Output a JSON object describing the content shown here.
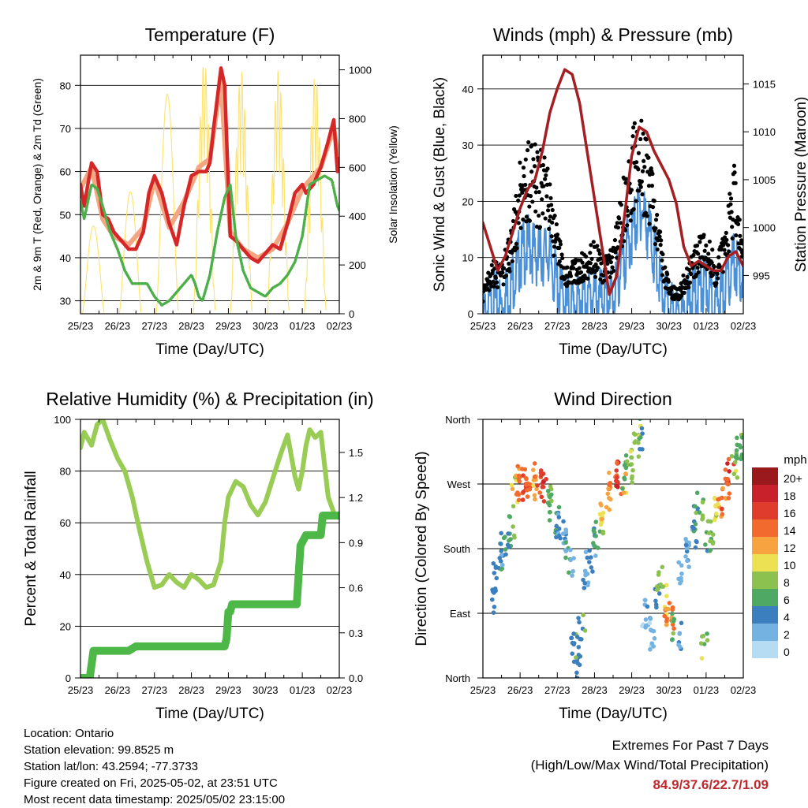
{
  "x_tick_labels": [
    "25/23",
    "26/23",
    "27/23",
    "28/23",
    "29/23",
    "30/23",
    "01/23",
    "02/23"
  ],
  "chart_data": [
    {
      "type": "line",
      "title": "Temperature (F)",
      "xlabel": "Time (Day/UTC)",
      "ylabel": "2m & 9m T (Red, Orange) & 2m Td (Green)",
      "ylabel_right": "Solar Insolation (Yellow)",
      "ylim": [
        27,
        87
      ],
      "ylim_right": [
        0,
        1060
      ],
      "xlim": [
        0,
        7
      ],
      "yticks": [
        30,
        40,
        50,
        60,
        70,
        80
      ],
      "yticks_right": [
        0,
        200,
        400,
        600,
        800,
        1000
      ],
      "series": [
        {
          "role": "2m T",
          "color": "#d62728",
          "x": [
            0,
            0.1,
            0.3,
            0.45,
            0.6,
            0.75,
            0.9,
            1.1,
            1.3,
            1.5,
            1.7,
            1.85,
            2.0,
            2.2,
            2.4,
            2.6,
            2.8,
            3.0,
            3.2,
            3.4,
            3.5,
            3.6,
            3.7,
            3.8,
            3.9,
            4.05,
            4.2,
            4.4,
            4.6,
            4.8,
            5.0,
            5.2,
            5.4,
            5.6,
            5.8,
            6.0,
            6.1,
            6.3,
            6.5,
            6.7,
            6.85,
            6.95,
            7.0
          ],
          "y": [
            57,
            52,
            62,
            60,
            50,
            49,
            46,
            44,
            42,
            42,
            46,
            55,
            59,
            55,
            48,
            43,
            52,
            59,
            60,
            60,
            62,
            70,
            77,
            84,
            80,
            45,
            44,
            42,
            40,
            39,
            41,
            43,
            42,
            48,
            55,
            57,
            55,
            57,
            61,
            67,
            72,
            60,
            63
          ]
        },
        {
          "role": "9m T",
          "color": "#f4a582",
          "x": [
            0,
            0.3,
            0.6,
            0.9,
            1.3,
            1.7,
            2.0,
            2.4,
            2.8,
            3.2,
            3.5,
            3.8,
            4.05,
            4.4,
            4.8,
            5.2,
            5.6,
            6.0,
            6.5,
            6.85,
            7.0
          ],
          "y": [
            56,
            61,
            49,
            45,
            43,
            47,
            58,
            47,
            53,
            61,
            63,
            81,
            46,
            42,
            40,
            42,
            48,
            56,
            61,
            70,
            62
          ]
        },
        {
          "role": "2m Td",
          "color": "#4daf4a",
          "x": [
            0,
            0.1,
            0.3,
            0.45,
            0.6,
            0.8,
            1.0,
            1.2,
            1.4,
            1.6,
            1.8,
            2.0,
            2.2,
            2.4,
            2.6,
            2.8,
            3.0,
            3.1,
            3.2,
            3.3,
            3.5,
            3.7,
            3.9,
            4.05,
            4.2,
            4.4,
            4.6,
            4.8,
            5.0,
            5.2,
            5.4,
            5.6,
            5.8,
            6.0,
            6.2,
            6.4,
            6.6,
            6.8,
            6.95,
            7.0
          ],
          "y": [
            53,
            49,
            57,
            56,
            52,
            46,
            42,
            37,
            34,
            34,
            34,
            31,
            29,
            30,
            32,
            34,
            36,
            34,
            31,
            30,
            36,
            46,
            54,
            57,
            45,
            37,
            33,
            32,
            31,
            33,
            34,
            36,
            39,
            45,
            57,
            58,
            59,
            58,
            52,
            51
          ]
        },
        {
          "role": "Solar Insolation",
          "color": "#fde36c",
          "axis": "right",
          "peaks_x": [
            0.35,
            1.35,
            2.35,
            3.35,
            4.35,
            5.35,
            6.35
          ],
          "peaks_y": [
            360,
            500,
            900,
            1040,
            1000,
            1000,
            980
          ]
        }
      ]
    },
    {
      "type": "line",
      "title": "Winds (mph) & Pressure (mb)",
      "xlabel": "Time (Day/UTC)",
      "ylabel": "Sonic Wind & Gust (Blue, Black)",
      "ylabel_right": "Station Pressure (Maroon)",
      "ylim": [
        0,
        46
      ],
      "ylim_right": [
        991.0,
        1018.0
      ],
      "xlim": [
        0,
        7
      ],
      "yticks": [
        0,
        10,
        20,
        30,
        40
      ],
      "yticks_right": [
        995,
        1000,
        1005,
        1010,
        1015
      ],
      "series": [
        {
          "role": "Sonic Wind",
          "color": "#4a90d9",
          "x": [
            0,
            0.25,
            0.5,
            0.75,
            1.0,
            1.25,
            1.5,
            1.75,
            2.0,
            2.25,
            2.5,
            2.75,
            3.0,
            3.25,
            3.5,
            3.75,
            4.0,
            4.25,
            4.5,
            4.75,
            5.0,
            5.25,
            5.5,
            5.75,
            6.0,
            6.25,
            6.5,
            6.75,
            7.0
          ],
          "y": [
            2,
            5,
            4,
            8,
            13,
            15,
            13,
            14,
            8,
            4,
            5,
            6,
            6,
            5,
            6,
            12,
            17,
            22,
            17,
            8,
            3,
            2,
            4,
            7,
            8,
            5,
            7,
            12,
            8
          ]
        },
        {
          "role": "Gust",
          "color": "#000000",
          "x": [
            0,
            0.25,
            0.5,
            0.75,
            1.0,
            1.25,
            1.5,
            1.75,
            2.0,
            2.25,
            2.5,
            2.75,
            3.0,
            3.25,
            3.5,
            3.75,
            4.0,
            4.25,
            4.5,
            4.75,
            5.0,
            5.25,
            5.5,
            5.75,
            6.0,
            6.25,
            6.5,
            6.75,
            7.0
          ],
          "y": [
            4,
            9,
            8,
            14,
            25,
            30,
            27,
            25,
            14,
            8,
            9,
            11,
            12,
            9,
            11,
            22,
            30,
            34,
            26,
            14,
            5,
            4,
            8,
            12,
            14,
            9,
            13,
            26,
            12
          ]
        },
        {
          "role": "Station Pressure",
          "color": "#a41e22",
          "axis": "right",
          "x": [
            0,
            0.2,
            0.4,
            0.6,
            0.8,
            1.0,
            1.2,
            1.4,
            1.6,
            1.8,
            2.0,
            2.2,
            2.4,
            2.6,
            2.8,
            3.0,
            3.2,
            3.4,
            3.6,
            3.8,
            4.0,
            4.2,
            4.4,
            4.6,
            4.8,
            5.0,
            5.2,
            5.4,
            5.6,
            5.8,
            6.0,
            6.2,
            6.4,
            6.6,
            6.8,
            7.0
          ],
          "y": [
            1000.5,
            998,
            995.5,
            997,
            999.5,
            1002,
            1004,
            1005,
            1008,
            1012,
            1014.5,
            1016.5,
            1016,
            1013,
            1008,
            1003,
            998,
            993,
            995,
            1001,
            1007.5,
            1010.5,
            1010,
            1008,
            1006.5,
            1005,
            1002.5,
            998,
            996,
            996.5,
            996,
            995.5,
            995.5,
            997,
            997.5,
            996
          ]
        }
      ]
    },
    {
      "type": "line",
      "title": "Relative Humidity (%) & Precipitation (in)",
      "xlabel": "Time (Day/UTC)",
      "ylabel": "Percent & Total Rainfall",
      "ylim": [
        0,
        100
      ],
      "ylim_right": [
        0,
        1.72
      ],
      "xlim": [
        0,
        7
      ],
      "yticks": [
        0,
        20,
        40,
        60,
        80,
        100
      ],
      "yticks_right": [
        "0.0",
        "0.3",
        "0.6",
        "0.9",
        "1.2",
        "1.5"
      ],
      "series": [
        {
          "role": "Relative Humidity",
          "color": "#99cc55",
          "x": [
            0,
            0.1,
            0.3,
            0.45,
            0.6,
            0.8,
            1.0,
            1.2,
            1.4,
            1.6,
            1.8,
            2.0,
            2.2,
            2.4,
            2.6,
            2.8,
            3.0,
            3.2,
            3.4,
            3.6,
            3.8,
            3.9,
            4.0,
            4.2,
            4.4,
            4.6,
            4.8,
            5.0,
            5.2,
            5.4,
            5.6,
            5.8,
            5.9,
            6.0,
            6.1,
            6.2,
            6.35,
            6.5,
            6.7,
            6.85,
            7.0
          ],
          "y": [
            89,
            95,
            90,
            98,
            100,
            92,
            85,
            80,
            70,
            57,
            45,
            35,
            36,
            40,
            37,
            35,
            40,
            38,
            35,
            36,
            45,
            60,
            70,
            76,
            74,
            67,
            63,
            68,
            77,
            86,
            94,
            78,
            73,
            80,
            90,
            96,
            93,
            95,
            70,
            64,
            62
          ]
        },
        {
          "role": "Total Precipitation",
          "color": "#4db848",
          "axis": "right",
          "x": [
            0,
            0.25,
            0.35,
            1.3,
            1.5,
            3.9,
            3.95,
            4.0,
            4.05,
            4.1,
            4.2,
            5.85,
            5.95,
            6.1,
            6.5,
            6.55,
            7.0
          ],
          "y": [
            0,
            0,
            0.18,
            0.18,
            0.21,
            0.21,
            0.26,
            0.44,
            0.44,
            0.49,
            0.49,
            0.49,
            0.88,
            0.95,
            0.95,
            1.08,
            1.08
          ]
        }
      ]
    },
    {
      "type": "scatter",
      "title": "Wind Direction",
      "xlabel": "Time (Day/UTC)",
      "ylabel": "Direction (Colored By Speed)",
      "ylim": [
        0,
        360
      ],
      "xlim": [
        0,
        7
      ],
      "ytick_labels": [
        "North",
        "East",
        "South",
        "West",
        "North"
      ],
      "colorbar_title": "mph",
      "colorbar_labels": [
        "20+",
        "18",
        "16",
        "14",
        "12",
        "10",
        "8",
        "6",
        "4",
        "2",
        "0"
      ],
      "colorbar_colors": [
        "#99191c",
        "#c9212b",
        "#e03c2d",
        "#f26a2d",
        "#f7a340",
        "#ece053",
        "#8cc150",
        "#4fa964",
        "#3b7fbf",
        "#74b2e2",
        "#b6dcf3"
      ],
      "points": {
        "x": [
          0.3,
          0.4,
          0.5,
          0.6,
          0.7,
          0.8,
          0.9,
          1.0,
          1.1,
          1.2,
          1.3,
          1.4,
          1.5,
          1.6,
          1.7,
          1.8,
          1.9,
          2.0,
          2.1,
          2.2,
          2.3,
          2.4,
          2.5,
          2.55,
          2.6,
          2.7,
          2.8,
          2.9,
          3.0,
          3.1,
          3.2,
          3.3,
          3.4,
          3.5,
          3.6,
          3.7,
          3.8,
          3.9,
          4.0,
          4.1,
          4.2,
          4.3,
          4.4,
          4.5,
          4.6,
          4.7,
          4.8,
          4.9,
          5.0,
          5.1,
          5.2,
          5.3,
          5.4,
          5.5,
          5.6,
          5.7,
          5.8,
          5.9,
          6.0,
          6.1,
          6.2,
          6.3,
          6.4,
          6.5,
          6.6,
          6.7,
          6.8,
          6.9,
          6.95
        ],
        "y": [
          120,
          150,
          175,
          195,
          210,
          220,
          270,
          285,
          280,
          275,
          285,
          290,
          280,
          285,
          275,
          260,
          250,
          230,
          220,
          210,
          200,
          170,
          60,
          40,
          20,
          80,
          150,
          170,
          200,
          210,
          220,
          240,
          260,
          280,
          300,
          290,
          280,
          290,
          300,
          320,
          340,
          350,
          100,
          90,
          70,
          120,
          150,
          120,
          90,
          100,
          80,
          70,
          160,
          180,
          200,
          210,
          230,
          250,
          60,
          200,
          220,
          240,
          250,
          260,
          280,
          300,
          310,
          330,
          340
        ],
        "speed": [
          4,
          4,
          5,
          5,
          6,
          8,
          11,
          15,
          16,
          17,
          16,
          14,
          13,
          17,
          16,
          8,
          6,
          5,
          4,
          4,
          5,
          5,
          7,
          6,
          7,
          7,
          4,
          4,
          5,
          6,
          9,
          11,
          12,
          14,
          16,
          17,
          13,
          8,
          9,
          10,
          10,
          6,
          2,
          3,
          2,
          4,
          8,
          10,
          14,
          15,
          8,
          5,
          4,
          5,
          5,
          6,
          7,
          8,
          9,
          6,
          8,
          10,
          13,
          15,
          17,
          17,
          10,
          8,
          9
        ]
      }
    }
  ],
  "info": {
    "location": "Location: Ontario",
    "elevation": "Station elevation: 99.8525 m",
    "latlon": "Station lat/lon: 43.2594; -77.3733",
    "created": "Figure created on Fri, 2025-05-02, at 23:51 UTC",
    "recent": "Most recent data timestamp: 2025/05/02 23:15:00"
  },
  "extremes": {
    "title": "Extremes For Past 7 Days",
    "subtitle": "(High/Low/Max Wind/Total Precipitation)",
    "values": "84.9/37.6/22.7/1.09"
  }
}
